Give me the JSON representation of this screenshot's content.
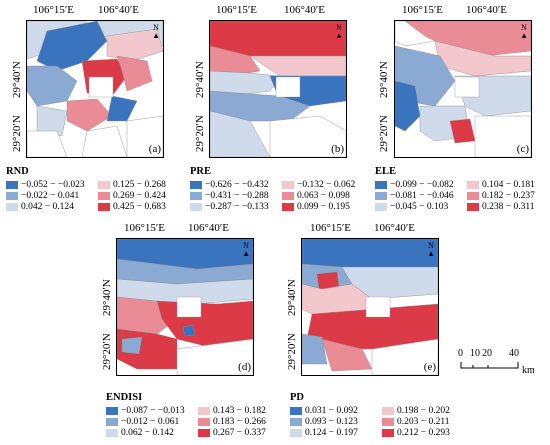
{
  "axis": {
    "lon_labels": [
      "106°15′E",
      "106°40′E"
    ],
    "lat_labels": [
      "29°40′N",
      "29°20′N"
    ],
    "north_label": "N"
  },
  "panels": [
    {
      "id": "a",
      "label": "(a)",
      "legend_title": "RND",
      "classes": [
        {
          "range": "−0.052 − −0.023",
          "color": "#3a74bf"
        },
        {
          "range": "−0.022 − 0.041",
          "color": "#8aa9d3"
        },
        {
          "range": "0.042 − 0.124",
          "color": "#cfdbeb"
        },
        {
          "range": "0.125 − 0.268",
          "color": "#f3c8cc"
        },
        {
          "range": "0.269 − 0.424",
          "color": "#ea8c95"
        },
        {
          "range": "0.425 − 0.683",
          "color": "#dc3a47"
        }
      ]
    },
    {
      "id": "b",
      "label": "(b)",
      "legend_title": "PRE",
      "classes": [
        {
          "range": "−0.626 − −0.432",
          "color": "#3a74bf"
        },
        {
          "range": "−0.431 − −0.288",
          "color": "#8aa9d3"
        },
        {
          "range": "−0.287 − −0.133",
          "color": "#cfdbeb"
        },
        {
          "range": "−0.132 − 0.062",
          "color": "#f3c8cc"
        },
        {
          "range": "0.063 − 0.098",
          "color": "#ea8c95"
        },
        {
          "range": "0.099 − 0.195",
          "color": "#dc3a47"
        }
      ]
    },
    {
      "id": "c",
      "label": "(c)",
      "legend_title": "ELE",
      "classes": [
        {
          "range": "−0.099 − −0.082",
          "color": "#3a74bf"
        },
        {
          "range": "−0.081 − −0.046",
          "color": "#8aa9d3"
        },
        {
          "range": "−0.045 − 0.103",
          "color": "#cfdbeb"
        },
        {
          "range": "0.104 − 0.181",
          "color": "#f3c8cc"
        },
        {
          "range": "0.182 − 0.237",
          "color": "#ea8c95"
        },
        {
          "range": "0.238 − 0.311",
          "color": "#dc3a47"
        }
      ]
    },
    {
      "id": "d",
      "label": "(d)",
      "legend_title": "ENDISI",
      "classes": [
        {
          "range": "−0.087 − −0.013",
          "color": "#3a74bf"
        },
        {
          "range": "−0.012 − 0.061",
          "color": "#8aa9d3"
        },
        {
          "range": "0.062 − 0.142",
          "color": "#cfdbeb"
        },
        {
          "range": "0.143 − 0.182",
          "color": "#f3c8cc"
        },
        {
          "range": "0.183 − 0.266",
          "color": "#ea8c95"
        },
        {
          "range": "0.267 − 0.337",
          "color": "#dc3a47"
        }
      ]
    },
    {
      "id": "e",
      "label": "(e)",
      "legend_title": "PD",
      "classes": [
        {
          "range": "0.031 − 0.092",
          "color": "#3a74bf"
        },
        {
          "range": "0.093 − 0.123",
          "color": "#8aa9d3"
        },
        {
          "range": "0.124 − 0.197",
          "color": "#cfdbeb"
        },
        {
          "range": "0.198 − 0.202",
          "color": "#f3c8cc"
        },
        {
          "range": "0.203 − 0.211",
          "color": "#ea8c95"
        },
        {
          "range": "0.212 − 0.293",
          "color": "#dc3a47"
        }
      ]
    }
  ],
  "scale_bar": {
    "ticks": [
      "0",
      "10",
      "20",
      "40"
    ],
    "unit": "km"
  }
}
